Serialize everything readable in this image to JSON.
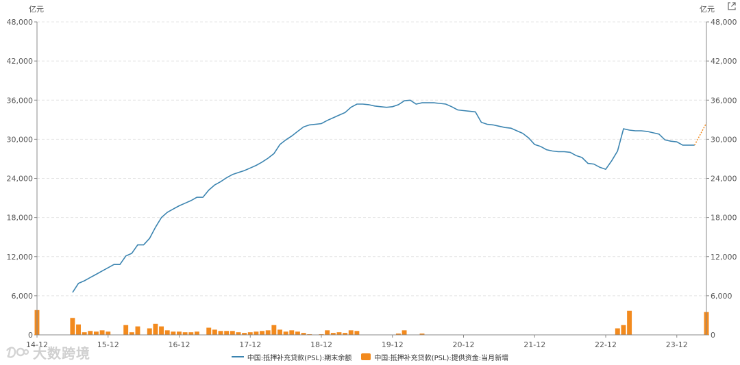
{
  "chart_data": {
    "type": "bar+line",
    "unit_left": "亿元",
    "unit_right": "亿元",
    "ylim": [
      0,
      48000
    ],
    "yticks": [
      "0",
      "6,000",
      "12,000",
      "18,000",
      "24,000",
      "30,000",
      "36,000",
      "42,000",
      "48,000"
    ],
    "x_tick_labels": [
      "14-12",
      "15-12",
      "16-12",
      "17-12",
      "18-12",
      "19-12",
      "20-12",
      "21-12",
      "22-12",
      "23-12"
    ],
    "x_start": "2014-12",
    "series": [
      {
        "name": "中国:抵押补充贷款(PSL):期末余额",
        "type": "line",
        "color": "#3b84b0",
        "values": [
          null,
          null,
          null,
          null,
          null,
          null,
          6500,
          7900,
          8300,
          8800,
          9300,
          9800,
          10300,
          10800,
          10800,
          12100,
          12500,
          13800,
          13800,
          14800,
          16500,
          18000,
          18800,
          19300,
          19800,
          20200,
          20600,
          21100,
          21100,
          22200,
          23000,
          23500,
          24100,
          24600,
          24900,
          25200,
          25600,
          26000,
          26500,
          27100,
          27800,
          29200,
          29900,
          30500,
          31200,
          31900,
          32200,
          32300,
          32400,
          32900,
          33300,
          33700,
          34100,
          34900,
          35400,
          35400,
          35300,
          35100,
          35000,
          34900,
          35000,
          35300,
          35900,
          36000,
          35400,
          35600,
          35600,
          35600,
          35500,
          35400,
          35000,
          34500,
          34400,
          34300,
          34200,
          32600,
          32300,
          32200,
          32000,
          31800,
          31700,
          31300,
          30900,
          30200,
          29200,
          28900,
          28400,
          28200,
          28100,
          28100,
          28000,
          27500,
          27200,
          26300,
          26200,
          25700,
          25400,
          26700,
          28200,
          31600,
          31400,
          31300,
          31300,
          31200,
          31000,
          30800,
          29900,
          29700,
          29600,
          29100,
          29100,
          29100,
          null
        ],
        "forecast_last": 32500
      },
      {
        "name": "中国:抵押补充贷款(PSL):提供资金:当月新增",
        "type": "bar",
        "color": "#f28a1e",
        "values": [
          3800,
          0,
          0,
          0,
          0,
          0,
          2600,
          1600,
          400,
          600,
          500,
          700,
          500,
          0,
          0,
          1500,
          400,
          1300,
          0,
          1000,
          1700,
          1300,
          700,
          500,
          500,
          400,
          400,
          500,
          0,
          1100,
          800,
          600,
          600,
          600,
          400,
          300,
          400,
          500,
          600,
          700,
          1500,
          800,
          500,
          700,
          500,
          300,
          100,
          0,
          100,
          700,
          300,
          400,
          300,
          700,
          600,
          0,
          0,
          0,
          0,
          0,
          0,
          200,
          700,
          0,
          0,
          200,
          0,
          0,
          0,
          0,
          0,
          0,
          0,
          0,
          0,
          0,
          0,
          0,
          0,
          0,
          0,
          0,
          0,
          0,
          0,
          0,
          0,
          0,
          0,
          0,
          0,
          0,
          0,
          0,
          0,
          0,
          0,
          0,
          1000,
          1500,
          3700,
          0,
          0,
          0,
          0,
          0,
          0,
          0,
          0,
          0,
          0,
          0,
          0,
          3500
        ]
      }
    ]
  },
  "watermark": "大数跨境"
}
